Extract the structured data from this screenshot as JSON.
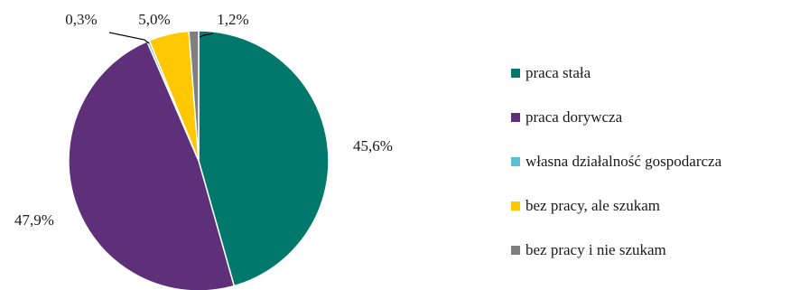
{
  "chart_data": {
    "type": "pie",
    "title": "",
    "legend_position": "right",
    "categories": [
      "praca stała",
      "praca dorywcza",
      "własna działalność gospodarcza",
      "bez pracy, ale szukam",
      "bez pracy i nie szukam"
    ],
    "values": [
      45.6,
      47.9,
      0.3,
      5.0,
      1.2
    ],
    "data_labels": [
      "45,6%",
      "47,9%",
      "0,3%",
      "5,0%",
      "1,2%"
    ],
    "colors": [
      "#00786C",
      "#5E307A",
      "#5BBFD2",
      "#FFC800",
      "#7F7F7F"
    ]
  }
}
